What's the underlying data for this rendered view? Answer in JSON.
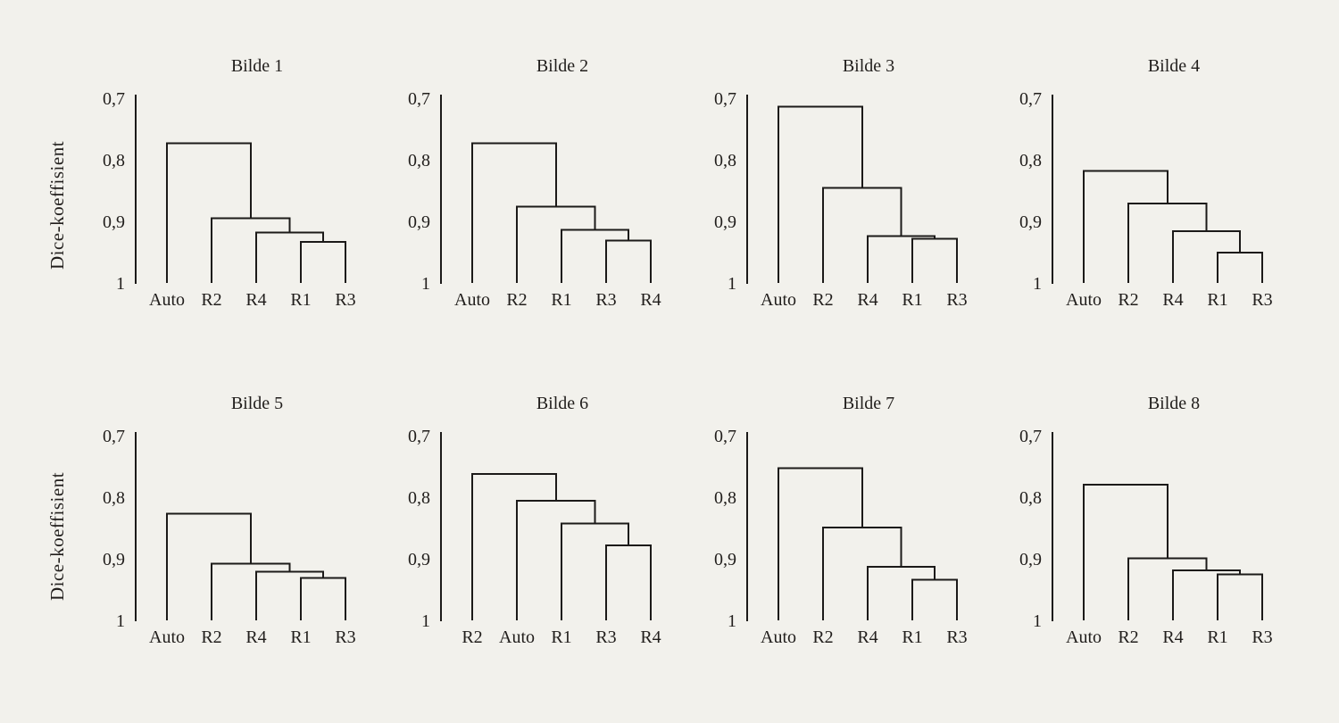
{
  "style": {
    "background_color": "#f2f1ec",
    "line_color": "#1c1a19",
    "text_color": "#211e1c"
  },
  "chart_data": {
    "type": "dendrogram",
    "layout": "2x4-grid",
    "axis": {
      "ylabel": "Dice-koeffisient",
      "ymin": 0.7,
      "ymax": 1.0,
      "inverted": true,
      "decimal_separator": ",",
      "yticks": [
        {
          "label": "0,7",
          "value": 0.7
        },
        {
          "label": "0,8",
          "value": 0.8
        },
        {
          "label": "0,9",
          "value": 0.9
        },
        {
          "label": "1",
          "value": 1.0
        }
      ]
    },
    "panels": [
      {
        "title": "Bilde 1",
        "leaves": [
          "Auto",
          "R2",
          "R4",
          "R1",
          "R3"
        ],
        "merges": [
          {
            "pair": [
              "R1",
              "R3"
            ],
            "height": 0.933
          },
          {
            "pair": [
              "R4",
              "C1"
            ],
            "height": 0.918
          },
          {
            "pair": [
              "R2",
              "C2"
            ],
            "height": 0.895
          },
          {
            "pair": [
              "Auto",
              "C3"
            ],
            "height": 0.773
          }
        ]
      },
      {
        "title": "Bilde 2",
        "leaves": [
          "Auto",
          "R2",
          "R1",
          "R3",
          "R4"
        ],
        "merges": [
          {
            "pair": [
              "R3",
              "R4"
            ],
            "height": 0.931
          },
          {
            "pair": [
              "R1",
              "C1"
            ],
            "height": 0.914
          },
          {
            "pair": [
              "R2",
              "C2"
            ],
            "height": 0.876
          },
          {
            "pair": [
              "Auto",
              "C3"
            ],
            "height": 0.773
          }
        ]
      },
      {
        "title": "Bilde 3",
        "leaves": [
          "Auto",
          "R2",
          "R4",
          "R1",
          "R3"
        ],
        "merges": [
          {
            "pair": [
              "R1",
              "R3"
            ],
            "height": 0.928
          },
          {
            "pair": [
              "R4",
              "C1"
            ],
            "height": 0.924
          },
          {
            "pair": [
              "R2",
              "C2"
            ],
            "height": 0.846
          },
          {
            "pair": [
              "Auto",
              "C3"
            ],
            "height": 0.714
          }
        ]
      },
      {
        "title": "Bilde 4",
        "leaves": [
          "Auto",
          "R2",
          "R4",
          "R1",
          "R3"
        ],
        "merges": [
          {
            "pair": [
              "R1",
              "R3"
            ],
            "height": 0.951
          },
          {
            "pair": [
              "R4",
              "C1"
            ],
            "height": 0.916
          },
          {
            "pair": [
              "R2",
              "C2"
            ],
            "height": 0.871
          },
          {
            "pair": [
              "Auto",
              "C3"
            ],
            "height": 0.818
          }
        ]
      },
      {
        "title": "Bilde 5",
        "leaves": [
          "Auto",
          "R2",
          "R4",
          "R1",
          "R3"
        ],
        "merges": [
          {
            "pair": [
              "R1",
              "R3"
            ],
            "height": 0.931
          },
          {
            "pair": [
              "R4",
              "C1"
            ],
            "height": 0.921
          },
          {
            "pair": [
              "R2",
              "C2"
            ],
            "height": 0.908
          },
          {
            "pair": [
              "Auto",
              "C3"
            ],
            "height": 0.827
          }
        ]
      },
      {
        "title": "Bilde 6",
        "leaves": [
          "R2",
          "Auto",
          "R1",
          "R3",
          "R4"
        ],
        "merges": [
          {
            "pair": [
              "R3",
              "R4"
            ],
            "height": 0.878
          },
          {
            "pair": [
              "R1",
              "C1"
            ],
            "height": 0.843
          },
          {
            "pair": [
              "Auto",
              "C2"
            ],
            "height": 0.806
          },
          {
            "pair": [
              "R2",
              "C3"
            ],
            "height": 0.762
          }
        ]
      },
      {
        "title": "Bilde 7",
        "leaves": [
          "Auto",
          "R2",
          "R4",
          "R1",
          "R3"
        ],
        "merges": [
          {
            "pair": [
              "R1",
              "R3"
            ],
            "height": 0.934
          },
          {
            "pair": [
              "R4",
              "C1"
            ],
            "height": 0.913
          },
          {
            "pair": [
              "R2",
              "C2"
            ],
            "height": 0.849
          },
          {
            "pair": [
              "Auto",
              "C3"
            ],
            "height": 0.753
          }
        ]
      },
      {
        "title": "Bilde 8",
        "leaves": [
          "Auto",
          "R2",
          "R4",
          "R1",
          "R3"
        ],
        "merges": [
          {
            "pair": [
              "R1",
              "R3"
            ],
            "height": 0.925
          },
          {
            "pair": [
              "R4",
              "C1"
            ],
            "height": 0.919
          },
          {
            "pair": [
              "R2",
              "C2"
            ],
            "height": 0.899
          },
          {
            "pair": [
              "Auto",
              "C3"
            ],
            "height": 0.78
          }
        ]
      }
    ]
  }
}
